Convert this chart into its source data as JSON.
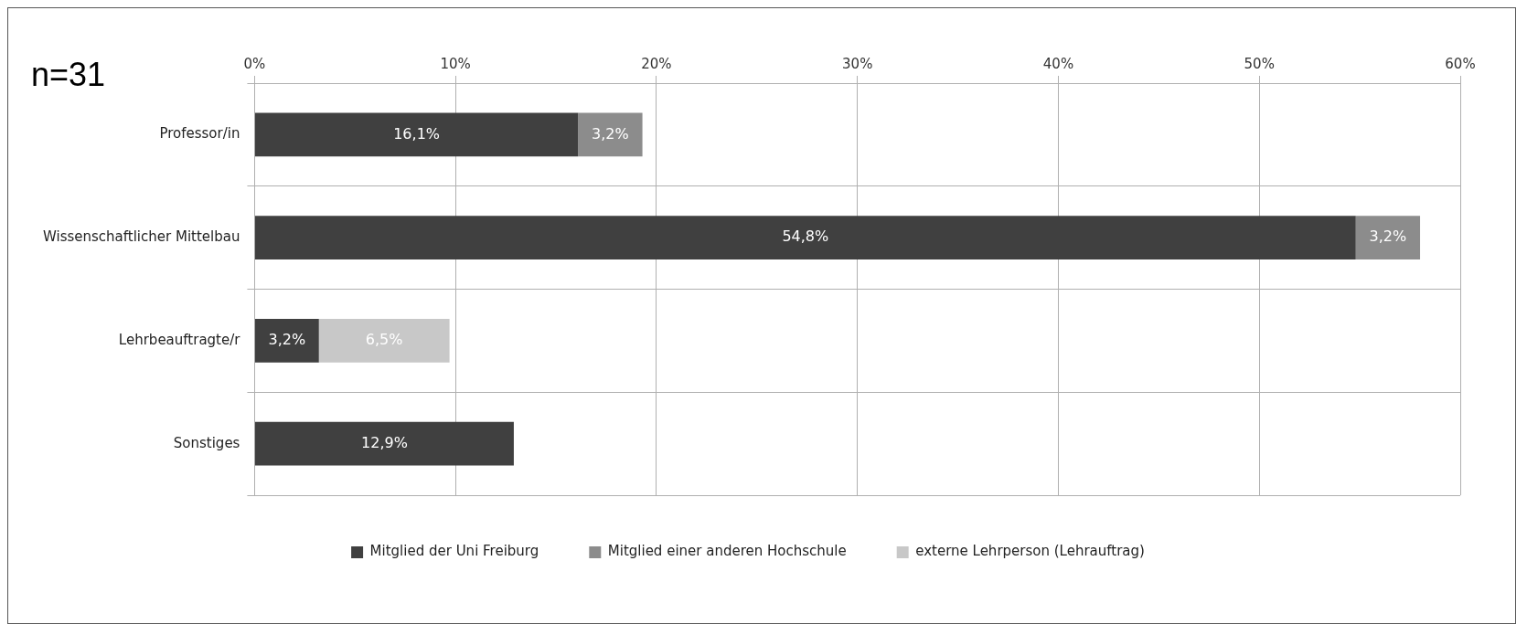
{
  "chart_data": {
    "type": "bar",
    "orientation": "horizontal",
    "stacked": true,
    "categories": [
      "Professor/in",
      "Wissenschaftlicher Mittelbau",
      "Lehrbeauftragte/r",
      "Sonstiges"
    ],
    "series": [
      {
        "name": "Mitglied der Uni Freiburg",
        "color": "#404040",
        "values": [
          16.1,
          54.8,
          3.2,
          12.9
        ],
        "value_labels": [
          "16,1%",
          "54,8%",
          "3,2%",
          "12,9%"
        ]
      },
      {
        "name": "Mitglied einer anderen Hochschule",
        "color": "#8c8c8c",
        "values": [
          3.2,
          3.2,
          null,
          null
        ],
        "value_labels": [
          "3,2%",
          "3,2%",
          null,
          null
        ]
      },
      {
        "name": "externe Lehrperson (Lehrauftrag)",
        "color": "#c8c8c8",
        "values": [
          null,
          null,
          6.5,
          null
        ],
        "value_labels": [
          null,
          null,
          "6,5%",
          null
        ]
      }
    ],
    "xlim": [
      0,
      60
    ],
    "xticks": [
      {
        "value": 0,
        "label": "0%"
      },
      {
        "value": 10,
        "label": "10%"
      },
      {
        "value": 20,
        "label": "20%"
      },
      {
        "value": 30,
        "label": "30%"
      },
      {
        "value": 40,
        "label": "40%"
      },
      {
        "value": 50,
        "label": "50%"
      },
      {
        "value": 60,
        "label": "60%"
      }
    ],
    "grid": true,
    "legend": "bottom",
    "annotations": [
      "n=31"
    ]
  }
}
